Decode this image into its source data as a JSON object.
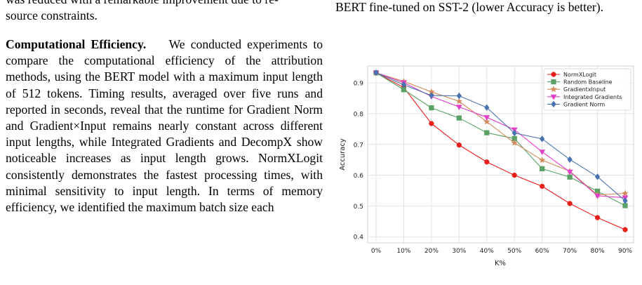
{
  "left_column": {
    "top_fragment": "was reduced with a remarkable improvement due to re-",
    "top_fragment_2": "source constraints.",
    "heading": "Computational Efficiency.",
    "body": "We conducted experiments to compare the computational efficiency of the attribution methods, using the BERT model with a maximum input length of 512 tokens. Timing results, averaged over five runs and reported in seconds, reveal that the runtime for Gradient Norm and Gradient×Input remains nearly constant across different input lengths, while Integrated Gradients and DecompX show noticeable increases as input length grows. NormXLogit consistently demonstrates the fastest processing times, with minimal sensitivity to input length. In terms of memory efficiency, we identified the maximum batch size each"
  },
  "right_column": {
    "caption_tail": "BERT fine-tuned on SST-2 (lower Accuracy is better)."
  },
  "chart_data": {
    "type": "line",
    "xlabel": "K%",
    "ylabel": "Accuracy",
    "categories": [
      "0%",
      "10%",
      "20%",
      "30%",
      "40%",
      "50%",
      "60%",
      "70%",
      "80%",
      "90%"
    ],
    "ylim": [
      0.38,
      0.955
    ],
    "yticks": [
      "0.4",
      "0.5",
      "0.6",
      "0.7",
      "0.8",
      "0.9"
    ],
    "grid": true,
    "legend_position": "top-right",
    "series": [
      {
        "name": "NormXLogit",
        "color": "#e8201c",
        "marker": "circle",
        "values": [
          0.933,
          0.885,
          0.768,
          0.698,
          0.643,
          0.6,
          0.564,
          0.508,
          0.462,
          0.423
        ]
      },
      {
        "name": "Random Baseline",
        "color": "#5aa266",
        "marker": "square",
        "values": [
          0.933,
          0.878,
          0.819,
          0.786,
          0.738,
          0.719,
          0.621,
          0.594,
          0.548,
          0.501
        ]
      },
      {
        "name": "GradientxInput",
        "color": "#d38a5a",
        "marker": "star",
        "values": [
          0.933,
          0.905,
          0.871,
          0.84,
          0.774,
          0.705,
          0.649,
          0.613,
          0.536,
          0.541
        ]
      },
      {
        "name": "Integrated Gradients",
        "color": "#e040c8",
        "marker": "triangle-down",
        "values": [
          0.933,
          0.901,
          0.856,
          0.822,
          0.788,
          0.748,
          0.676,
          0.611,
          0.533,
          0.527
        ]
      },
      {
        "name": "Gradient Norm",
        "color": "#4a72b0",
        "marker": "diamond",
        "values": [
          0.933,
          0.894,
          0.859,
          0.858,
          0.82,
          0.737,
          0.718,
          0.651,
          0.595,
          0.517
        ]
      }
    ]
  }
}
